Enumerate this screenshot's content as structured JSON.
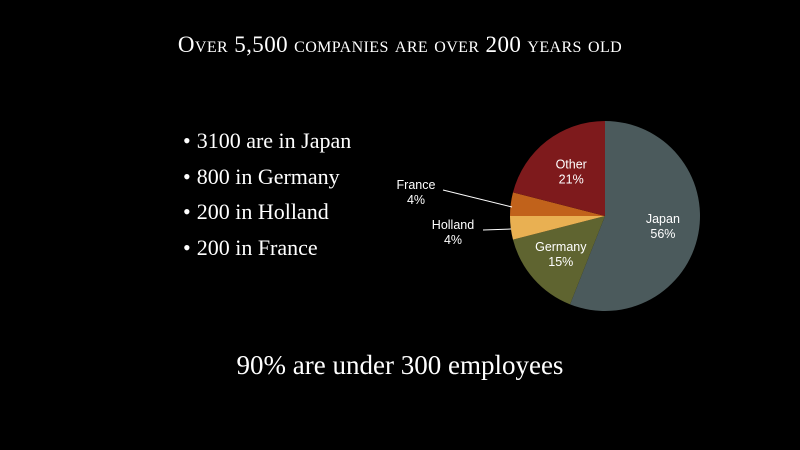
{
  "title": "Over 5,500 companies are over 200 years old",
  "bullets": [
    "3100 are in Japan",
    "800 in Germany",
    "200 in Holland",
    "200 in France"
  ],
  "footer": "90% are under 300 employees",
  "chart_data": {
    "type": "pie",
    "title": "",
    "slices": [
      {
        "label": "Japan",
        "value": 56,
        "value_label": "56%",
        "color": "#4b5a5c"
      },
      {
        "label": "Germany",
        "value": 15,
        "value_label": "15%",
        "color": "#5f6430"
      },
      {
        "label": "Holland",
        "value": 4,
        "value_label": "4%",
        "color": "#e9b052"
      },
      {
        "label": "France",
        "value": 4,
        "value_label": "4%",
        "color": "#c1621b"
      },
      {
        "label": "Other",
        "value": 21,
        "value_label": "21%",
        "color": "#7e1a1c"
      }
    ],
    "label_color": "#ffffff",
    "legend": "none"
  }
}
